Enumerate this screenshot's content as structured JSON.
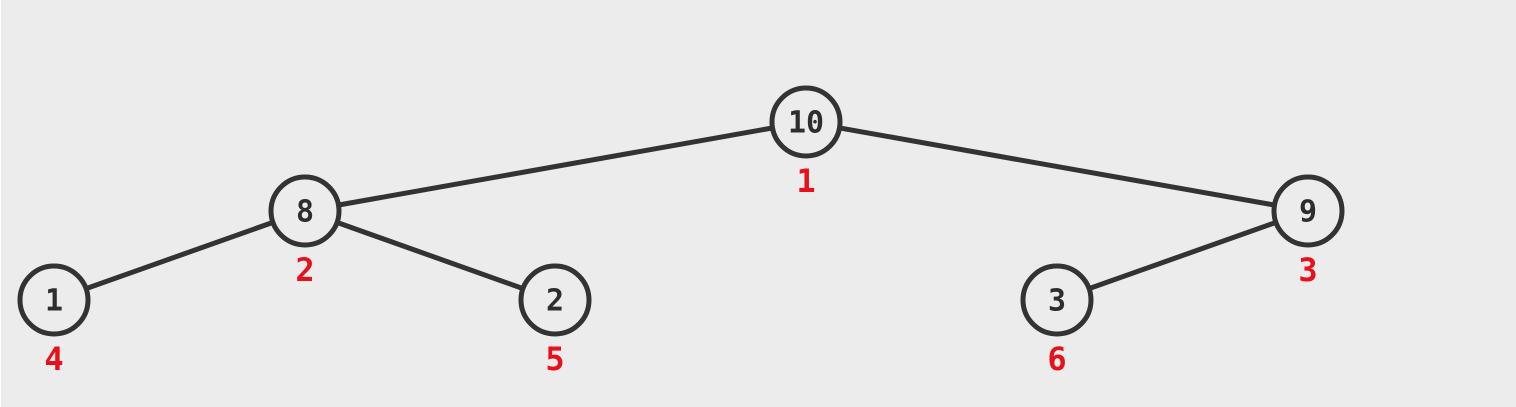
{
  "tree": {
    "nodes": [
      {
        "id": "n1",
        "value": "10",
        "index": "1",
        "parent": null
      },
      {
        "id": "n2",
        "value": "8",
        "index": "2",
        "parent": "n1"
      },
      {
        "id": "n3",
        "value": "9",
        "index": "3",
        "parent": "n1"
      },
      {
        "id": "n4",
        "value": "1",
        "index": "4",
        "parent": "n2"
      },
      {
        "id": "n5",
        "value": "2",
        "index": "5",
        "parent": "n2"
      },
      {
        "id": "n6",
        "value": "3",
        "index": "6",
        "parent": "n3"
      }
    ],
    "colors": {
      "background": "#ececec",
      "stroke": "#333333",
      "value_text": "#2e2e2e",
      "index_text": "#e8101a"
    }
  }
}
